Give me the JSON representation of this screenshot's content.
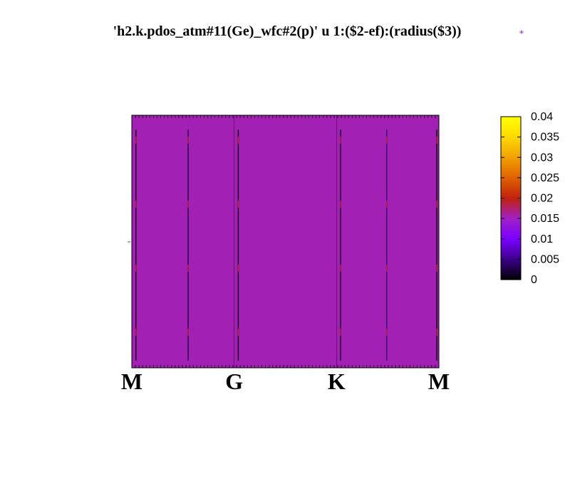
{
  "chart_data": {
    "type": "heatmap",
    "title": "'h2.k.pdos_atm#11(Ge)_wfc#2(p)' u 1:($2-ef):(radius($3))",
    "legend_marker": "+",
    "xlabel": "",
    "ylabel": "",
    "background_value": 0.0155,
    "kpoints": [
      {
        "label": "M",
        "x": 0
      },
      {
        "label": "G",
        "x": 1
      },
      {
        "label": "K",
        "x": 2
      },
      {
        "label": "M",
        "x": 3
      }
    ],
    "xlim": [
      0,
      3
    ],
    "band_features": [
      {
        "x": 0.04,
        "value": 0.0
      },
      {
        "x": 0.55,
        "value": 0.002
      },
      {
        "x": 1.04,
        "value": 0.0
      },
      {
        "x": 2.04,
        "value": 0.001
      },
      {
        "x": 2.49,
        "value": 0.004
      },
      {
        "x": 2.98,
        "value": 0.0
      }
    ],
    "colorbar": {
      "range": [
        0,
        0.04
      ],
      "ticks": [
        "0",
        "0.005",
        "0.01",
        "0.015",
        "0.02",
        "0.025",
        "0.03",
        "0.035",
        "0.04"
      ],
      "palette": [
        "#000000",
        "#3a0088",
        "#7a00ff",
        "#a020c8",
        "#c0200f",
        "#e06000",
        "#f0a000",
        "#ffd800",
        "#ffff00"
      ]
    }
  }
}
